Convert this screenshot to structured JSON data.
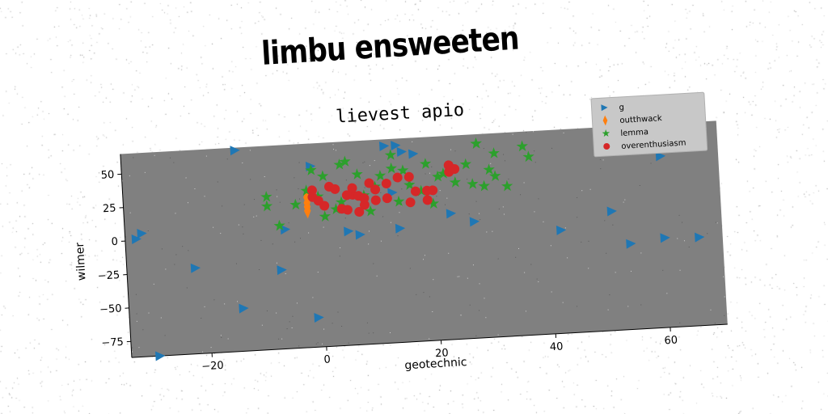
{
  "banner_text": "limbu ensweeten",
  "chart_data": {
    "type": "scatter",
    "title": "lievest apio",
    "xlabel": "geotechnic",
    "ylabel": "wilmer",
    "xlim": [
      -34,
      70
    ],
    "ylim": [
      -87,
      65
    ],
    "xticks": [
      -20,
      0,
      20,
      40,
      60
    ],
    "yticks": [
      -75,
      -50,
      -25,
      0,
      25,
      50
    ],
    "xtick_labels": [
      "−20",
      "0",
      "20",
      "40",
      "60"
    ],
    "ytick_labels": [
      "−75",
      "−50",
      "−25",
      "0",
      "25",
      "50"
    ],
    "grid": false,
    "legend_position": "top-right",
    "background_color": "#808080",
    "series": [
      {
        "name": "g",
        "marker": "triangle-right",
        "color": "#1f77b4",
        "x": [
          -14,
          -31,
          -32,
          -22,
          -7,
          -14,
          -29,
          -1,
          -1,
          -6,
          5,
          7,
          12,
          14,
          15,
          17,
          13,
          14,
          23,
          27,
          42,
          51,
          54,
          60,
          66,
          60
        ],
        "y": [
          63,
          5,
          1,
          -23,
          -28,
          -55,
          -87,
          -65,
          48,
          2,
          -2,
          -5,
          60,
          60,
          55,
          53,
          25,
          -2,
          7,
          0,
          -10,
          2,
          -23,
          -20,
          -21,
          41
        ]
      },
      {
        "name": "outthwack",
        "marker": "diamond",
        "color": "#ff7f0e",
        "x": [
          -2,
          -2,
          -2,
          -2
        ],
        "y": [
          15,
          18,
          21,
          25
        ]
      },
      {
        "name": "lemma",
        "marker": "star",
        "color": "#2ca02c",
        "x": [
          -9,
          -9,
          -7,
          -4,
          -1,
          0,
          3,
          4,
          5,
          1,
          8,
          10,
          11,
          13,
          15,
          16,
          18,
          20,
          21,
          24,
          26,
          27,
          28,
          29,
          30,
          31,
          33,
          36,
          37,
          4,
          9,
          14,
          7,
          1,
          -2,
          13,
          19,
          28,
          22,
          31
        ],
        "y": [
          20,
          27,
          5,
          20,
          45,
          25,
          15,
          48,
          50,
          10,
          24,
          30,
          38,
          43,
          41,
          30,
          25,
          15,
          35,
          30,
          43,
          28,
          58,
          26,
          38,
          50,
          25,
          54,
          46,
          20,
          12,
          18,
          40,
          40,
          30,
          53,
          45,
          58,
          37,
          33
        ]
      },
      {
        "name": "overenthusiasm",
        "marker": "circle",
        "color": "#d62728",
        "x": [
          -1,
          -1,
          0,
          1,
          2,
          4,
          5,
          6,
          6,
          7,
          8,
          8,
          9,
          10,
          10,
          12,
          12,
          14,
          16,
          16,
          17,
          19,
          19,
          20,
          23,
          23,
          24,
          3,
          5,
          7
        ],
        "y": [
          30,
          25,
          22,
          18,
          32,
          15,
          14,
          25,
          30,
          24,
          17,
          22,
          33,
          28,
          20,
          32,
          21,
          36,
          36,
          17,
          25,
          25,
          18,
          25,
          43,
          38,
          40,
          30,
          25,
          12
        ]
      }
    ]
  }
}
